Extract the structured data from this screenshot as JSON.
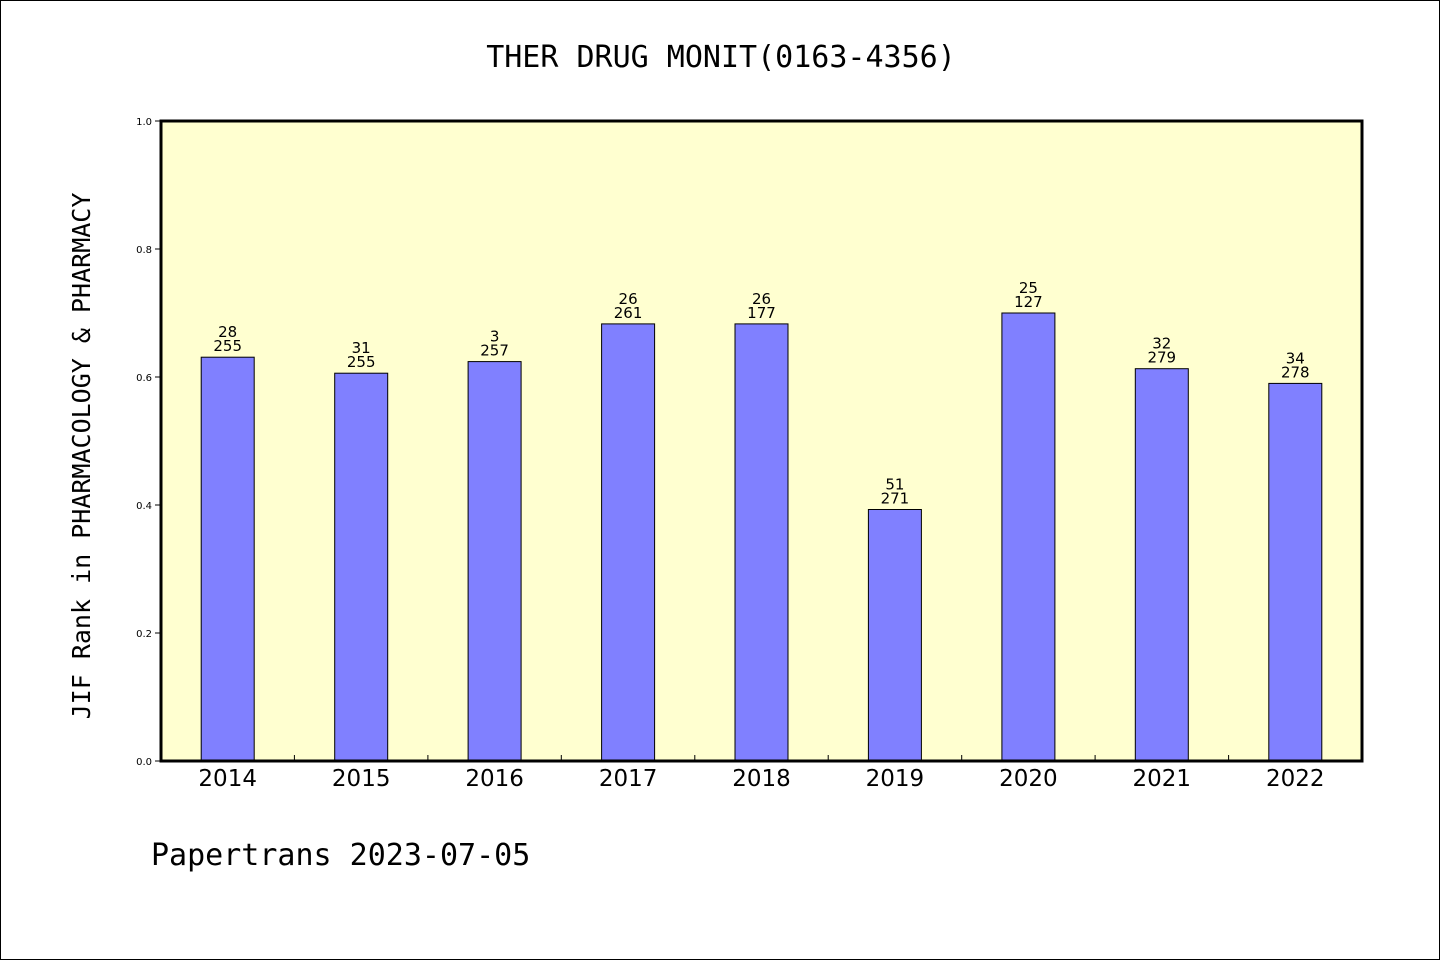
{
  "chart_data": {
    "type": "bar",
    "title": "THER DRUG MONIT(0163-4356)",
    "xlabel": "",
    "ylabel": "JIF Rank in PHARMACOLOGY & PHARMACY",
    "ylim": [
      0,
      1.0
    ],
    "yticks": [
      "0.0",
      "0.2",
      "0.4",
      "0.6",
      "0.8",
      "1.0"
    ],
    "categories": [
      "2014",
      "2015",
      "2016",
      "2017",
      "2018",
      "2019",
      "2020",
      "2021",
      "2022"
    ],
    "values": [
      0.631,
      0.606,
      0.624,
      0.683,
      0.683,
      0.393,
      0.7,
      0.613,
      0.59
    ],
    "labels_top": [
      "28",
      "31",
      "3",
      "26",
      "26",
      "51",
      "25",
      "32",
      "34"
    ],
    "labels_bottom": [
      "255",
      "255",
      "257",
      "261",
      "177",
      "271",
      "127",
      "279",
      "278"
    ],
    "grid": false,
    "legend": "none",
    "colors": {
      "plot_background": "#ffffd0",
      "bar_fill": "#8080ff",
      "bar_stroke": "#000000",
      "axis": "#000000"
    }
  },
  "footer": "Papertrans 2023-07-05"
}
